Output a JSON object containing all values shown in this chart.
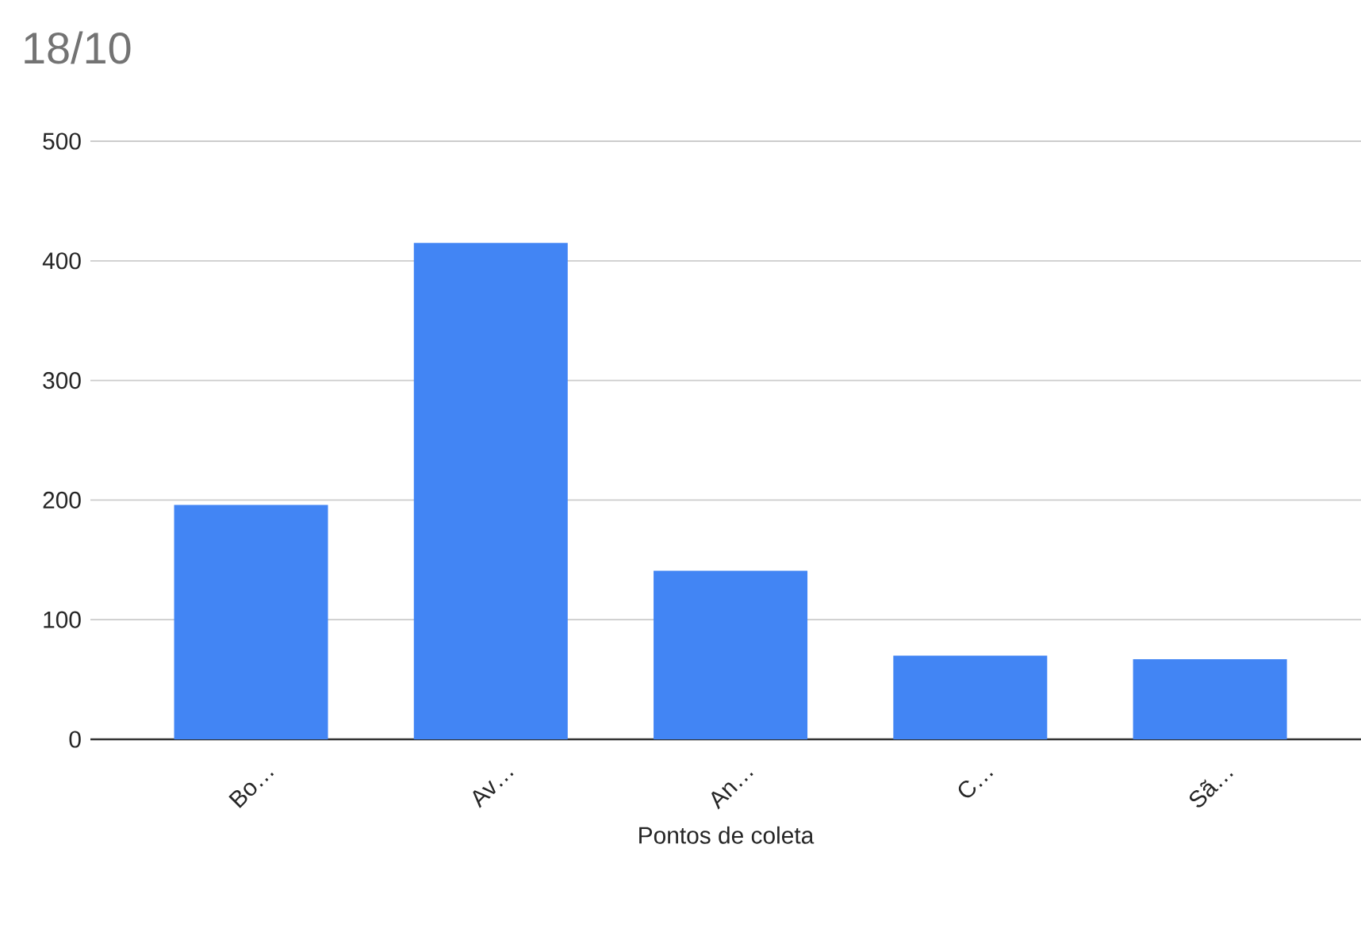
{
  "chart_data": {
    "type": "bar",
    "title": "18/10",
    "xlabel": "Pontos de coleta",
    "categories": [
      "Bo…",
      "Av…",
      "An…",
      "C…",
      "Sã…"
    ],
    "values": [
      196,
      415,
      141,
      70,
      67
    ],
    "color": "#4285f4",
    "ylim": [
      0,
      500
    ],
    "yticks": [
      0,
      100,
      200,
      300,
      400,
      500
    ],
    "grid": "y"
  }
}
